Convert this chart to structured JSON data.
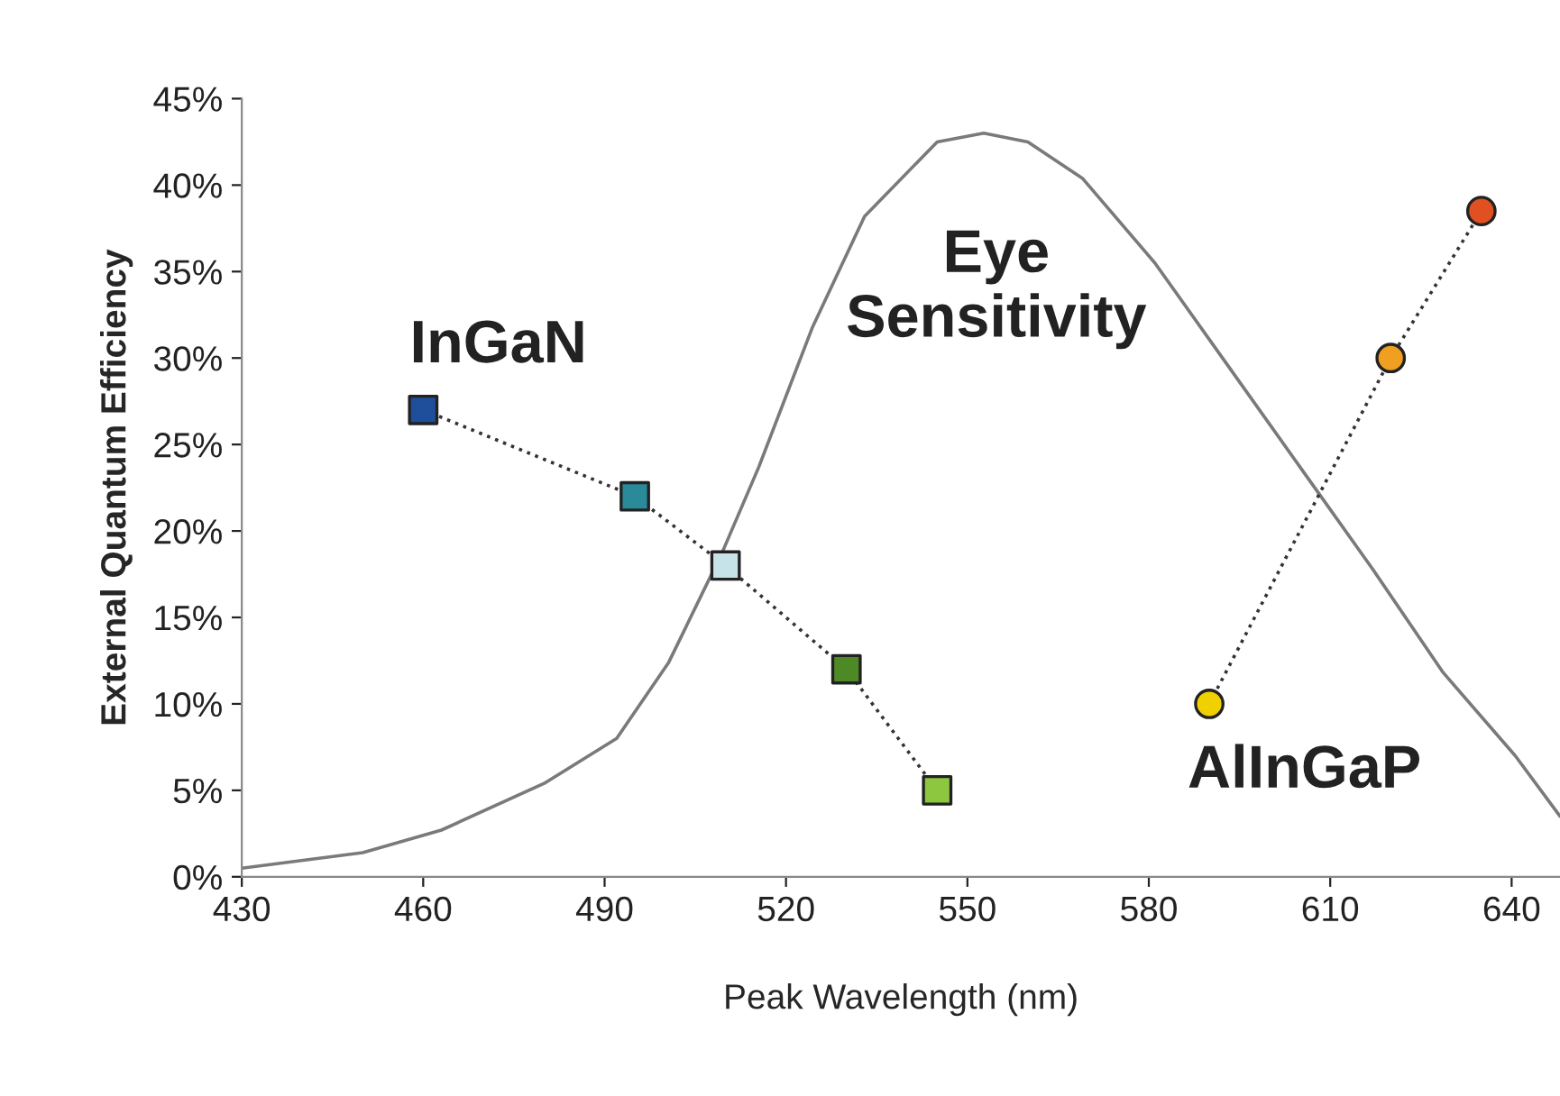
{
  "chart_data": {
    "type": "line",
    "xlabel": "Peak Wavelength (nm)",
    "ylabel": "External Quantum Efficiency",
    "xlim": [
      430,
      648
    ],
    "xticks": [
      430,
      460,
      490,
      520,
      550,
      580,
      610,
      640
    ],
    "ylim": [
      0,
      45
    ],
    "yticks": [
      {
        "value": 0,
        "label": "0%"
      },
      {
        "value": 5,
        "label": "5%"
      },
      {
        "value": 10,
        "label": "10%"
      },
      {
        "value": 15,
        "label": "15%"
      },
      {
        "value": 20,
        "label": "20%"
      },
      {
        "value": 25,
        "label": "25%"
      },
      {
        "value": 30,
        "label": "30%"
      },
      {
        "value": 35,
        "label": "35%"
      },
      {
        "value": 40,
        "label": "40%"
      },
      {
        "value": 45,
        "label": "45%"
      }
    ],
    "grid": false,
    "legend": false,
    "series": [
      {
        "name": "Eye\nSensitivity",
        "color": "#7a7a7a",
        "marker": "none",
        "line_style": "solid",
        "x": [
          430,
          450,
          463,
          480,
          492,
          500.6,
          509.5,
          515.5,
          524.4,
          533,
          545,
          552.7,
          560,
          569,
          581,
          593,
          605,
          617,
          628.7,
          640.6,
          648
        ],
        "values": [
          0.5,
          1.4,
          2.7,
          5.4,
          8,
          12.4,
          18.8,
          23.7,
          31.8,
          38.2,
          42.5,
          43,
          42.5,
          40.4,
          35.5,
          29.6,
          23.7,
          17.8,
          11.8,
          7,
          3.5
        ]
      },
      {
        "name": "InGaN",
        "color": "#333333",
        "marker": "square",
        "line_style": "dotted",
        "x": [
          460,
          495,
          510,
          530,
          545
        ],
        "values": [
          27,
          22,
          18,
          12,
          5
        ],
        "colors": [
          "#1f4e9a",
          "#2a8a9a",
          "#c5e3e8",
          "#4d8a25",
          "#8dc63f"
        ]
      },
      {
        "name": "AlInGaP",
        "color": "#333333",
        "marker": "circle",
        "line_style": "dotted",
        "x": [
          590,
          620,
          635
        ],
        "values": [
          10,
          30,
          38.5
        ],
        "colors": [
          "#f0d000",
          "#f0a020",
          "#e05020"
        ]
      }
    ]
  }
}
